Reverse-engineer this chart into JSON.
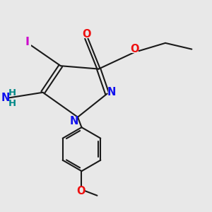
{
  "bg_color": "#e8e8e8",
  "bond_color": "#1a1a1a",
  "bond_width": 1.5,
  "atom_colors": {
    "N": "#1010ee",
    "O": "#ee1010",
    "I": "#cc00cc",
    "NH_N": "#1010ee",
    "NH_H": "#008888",
    "C": "#1a1a1a"
  },
  "fs": 10.5,
  "fs_small": 9.5
}
